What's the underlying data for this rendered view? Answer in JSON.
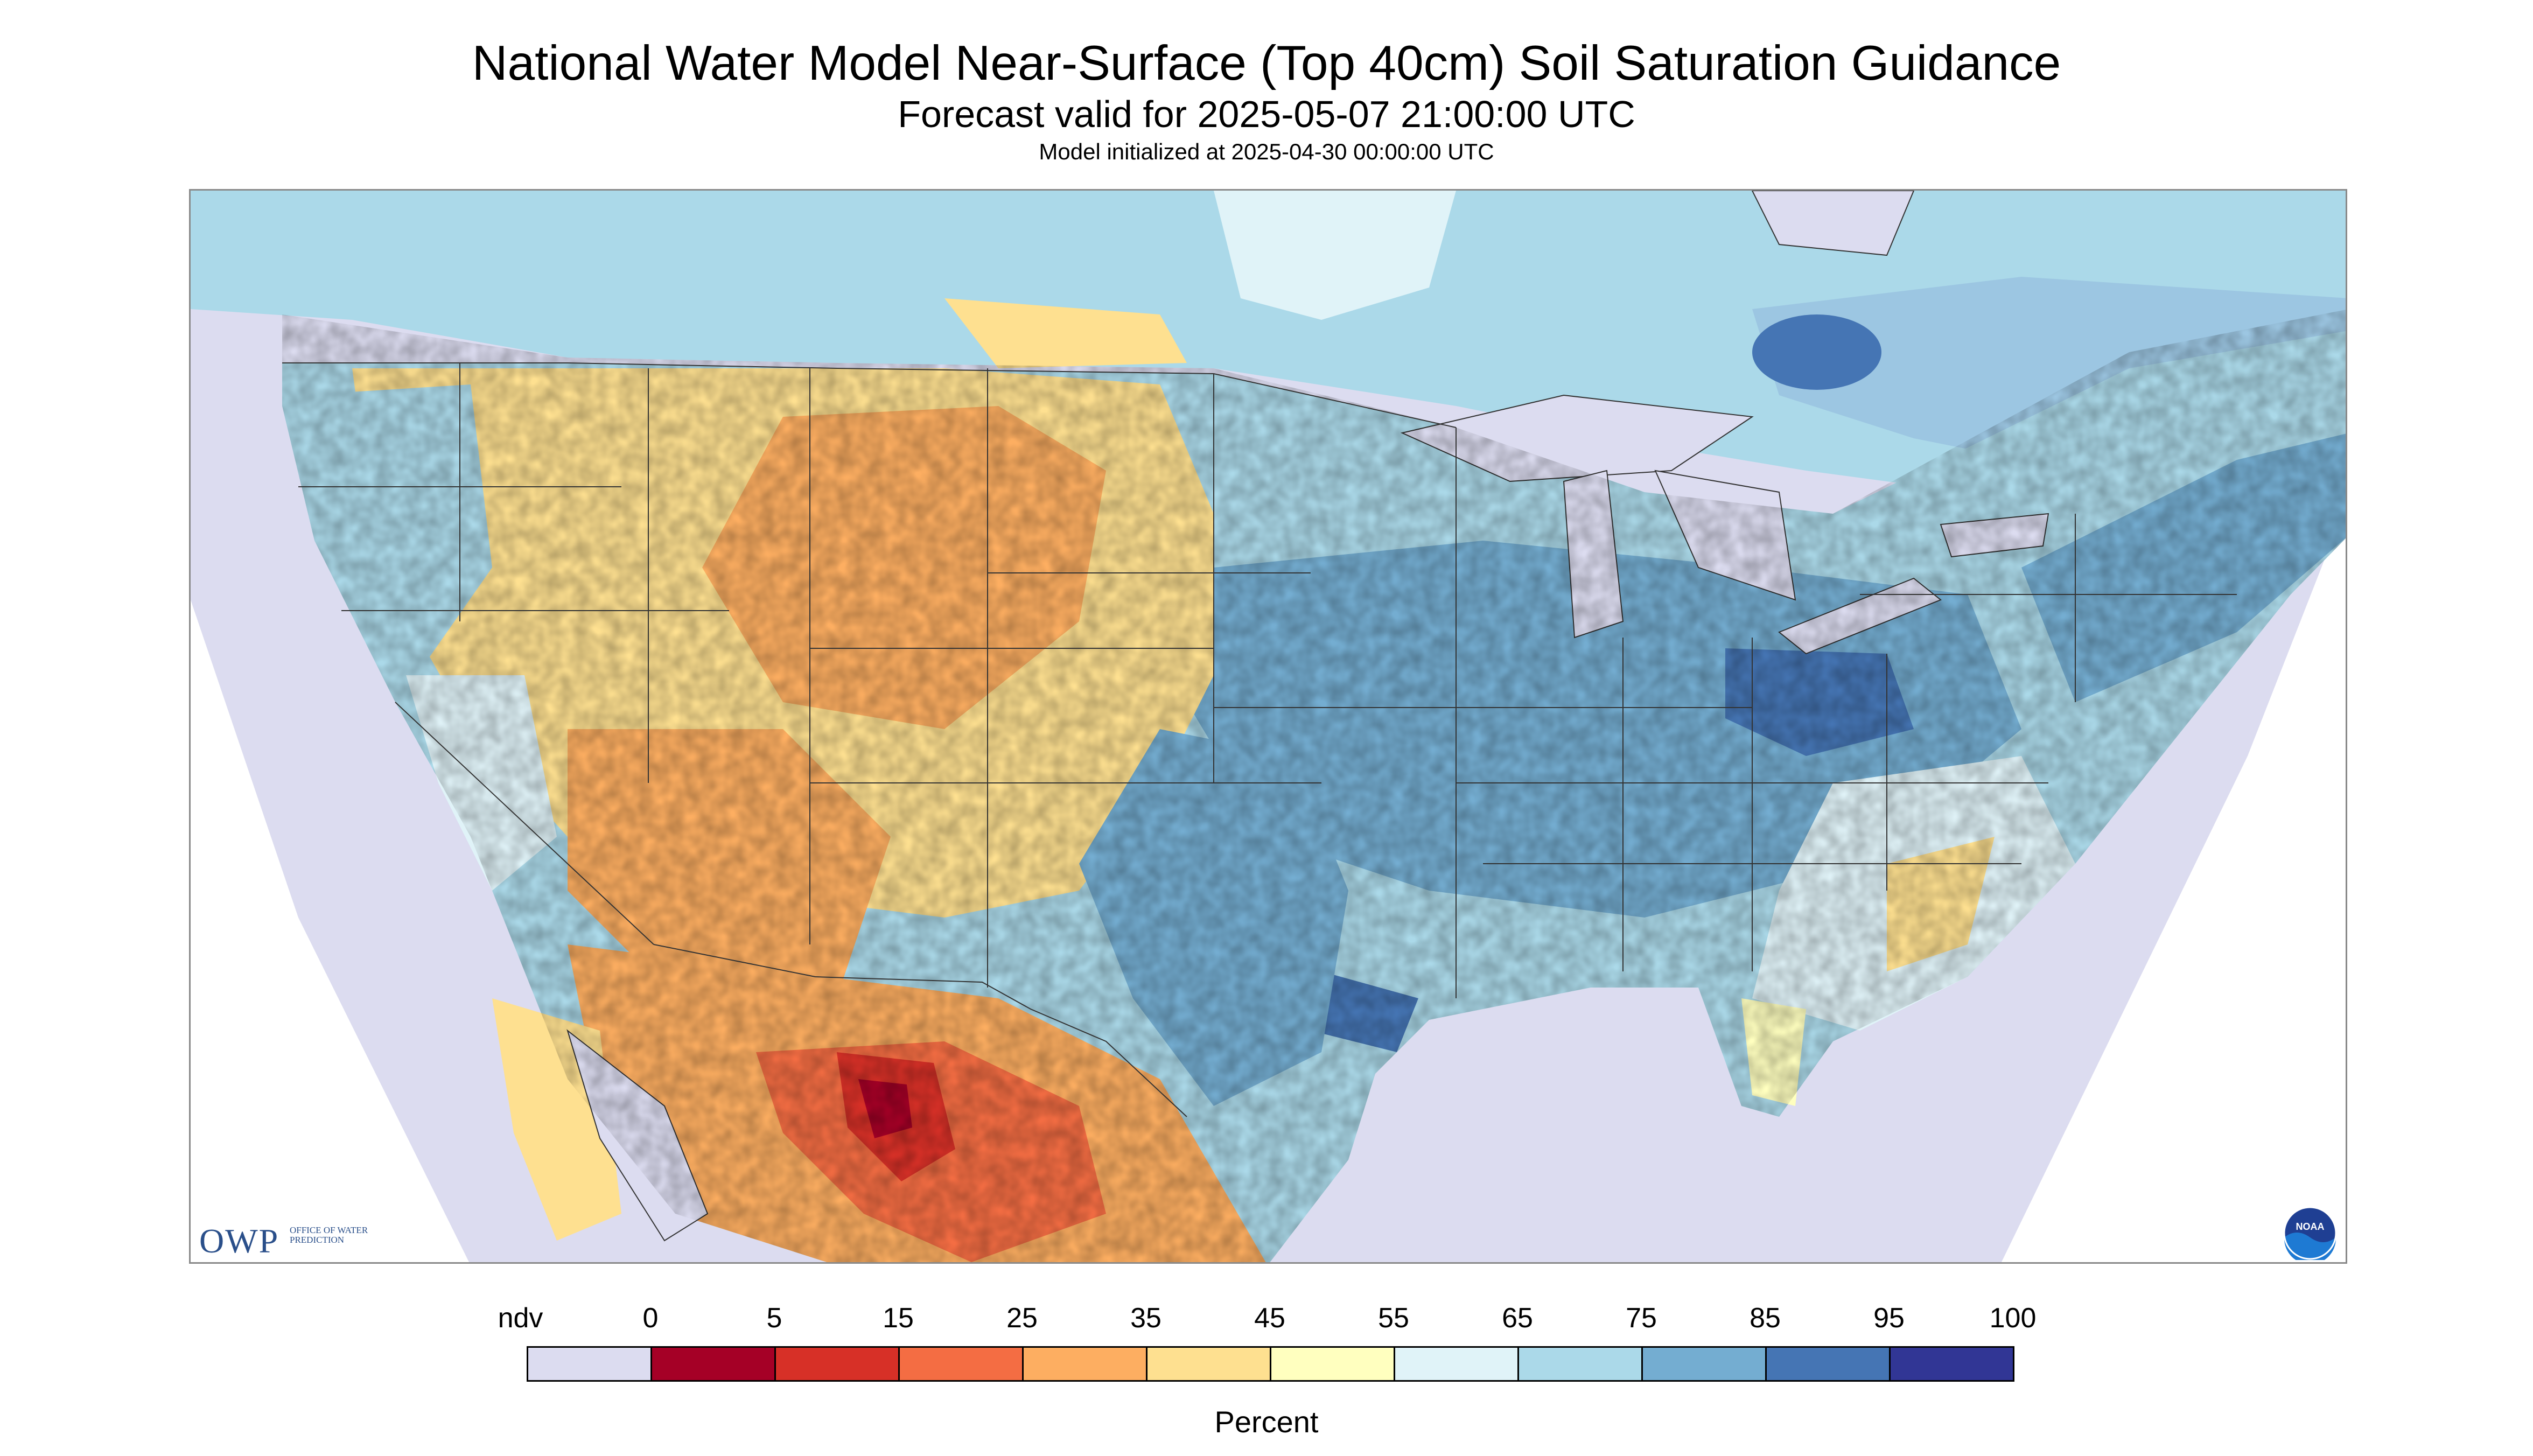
{
  "header": {
    "title": "National Water Model Near-Surface (Top 40cm) Soil Saturation Guidance",
    "subtitle": "Forecast valid for 2025-05-07 21:00:00 UTC",
    "init_line": "Model initialized at 2025-04-30 00:00:00 UTC"
  },
  "logos": {
    "owp_letters": "OWP",
    "owp_sub": "OFFICE OF WATER PREDICTION",
    "noaa_text": "NOAA"
  },
  "legend": {
    "ticks": [
      "ndv",
      "0",
      "5",
      "15",
      "25",
      "35",
      "45",
      "55",
      "65",
      "75",
      "85",
      "95",
      "100"
    ],
    "colors": [
      "#dcdcf0",
      "#a50026",
      "#d73027",
      "#f46d43",
      "#fdae61",
      "#fee090",
      "#ffffbf",
      "#e0f3f8",
      "#abd9e9",
      "#74add1",
      "#4575b4",
      "#313695"
    ],
    "units": "Percent"
  },
  "map": {
    "background_color": "#dcdcf0",
    "dominant_regions": [
      {
        "region": "Desert Southwest / Mexico",
        "saturation_class": "5-35"
      },
      {
        "region": "Great Plains / Rockies",
        "saturation_class": "25-55"
      },
      {
        "region": "Midwest / Ohio Valley / Northeast",
        "saturation_class": "65-95"
      },
      {
        "region": "Southeast Coastal",
        "saturation_class": "35-65"
      },
      {
        "region": "Canada",
        "saturation_class": "55-95"
      }
    ]
  }
}
